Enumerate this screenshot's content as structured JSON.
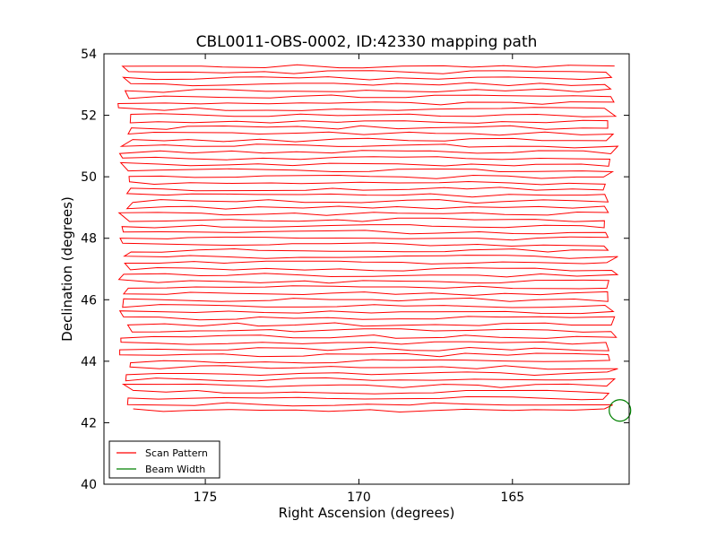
{
  "chart_data": {
    "type": "line",
    "title": "CBL0011-OBS-0002, ID:42330 mapping path",
    "xlabel": "Right Ascension (degrees)",
    "ylabel": "Declination (degrees)",
    "x_inverted": true,
    "xlim": [
      178.3,
      161.2
    ],
    "ylim": [
      40,
      54
    ],
    "xticks": [
      175,
      170,
      165
    ],
    "xtick_labels": [
      "175",
      "170",
      "165"
    ],
    "yticks": [
      40,
      42,
      44,
      46,
      48,
      50,
      52,
      54
    ],
    "ytick_labels": [
      "40",
      "42",
      "44",
      "46",
      "48",
      "50",
      "52",
      "54"
    ],
    "grid": false,
    "legend_position": "lower left",
    "scan": {
      "ra_start": 177.6,
      "ra_end": 161.8,
      "dec_start": 42.4,
      "dec_end": 53.6,
      "dec_step": 0.2,
      "note_turnaround_ra": [
        177.6,
        161.8
      ]
    },
    "beam": {
      "center": [
        161.5,
        42.4
      ],
      "radius_deg": 0.35
    },
    "series": [
      {
        "name": "Scan Pattern",
        "color": "#ff0000",
        "style": "line"
      },
      {
        "name": "Beam Width",
        "color": "#008000",
        "style": "circle"
      }
    ]
  }
}
